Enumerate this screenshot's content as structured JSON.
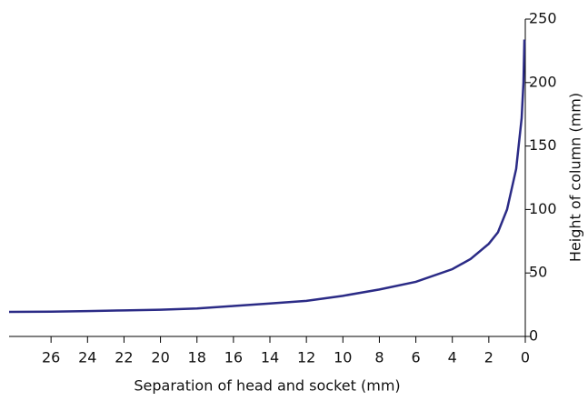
{
  "chart_data": {
    "type": "line",
    "x_label": "Separation of head and socket (mm)",
    "y_label": "Height of column (mm)",
    "x": [
      28.3,
      26,
      24,
      22,
      20,
      18,
      16,
      14,
      12,
      10,
      8,
      6,
      4,
      3,
      2,
      1.5,
      1,
      0.5,
      0.2,
      0.1,
      0.05,
      0
    ],
    "series": [
      {
        "name": "Height",
        "color": "#2b2b86",
        "values": [
          19.3,
          19.5,
          20,
          20.5,
          21,
          22,
          24,
          26,
          28,
          32,
          37,
          43,
          53,
          61,
          73,
          82,
          100,
          132,
          172,
          200,
          233,
          233
        ]
      }
    ],
    "xlim": [
      28.3,
      0
    ],
    "xticks": [
      26,
      24,
      22,
      20,
      18,
      16,
      14,
      12,
      10,
      8,
      6,
      4,
      2,
      0
    ],
    "ylim": [
      0,
      250
    ],
    "yticks": [
      0,
      50,
      100,
      150,
      200,
      250
    ],
    "y_axis_side": "right"
  }
}
